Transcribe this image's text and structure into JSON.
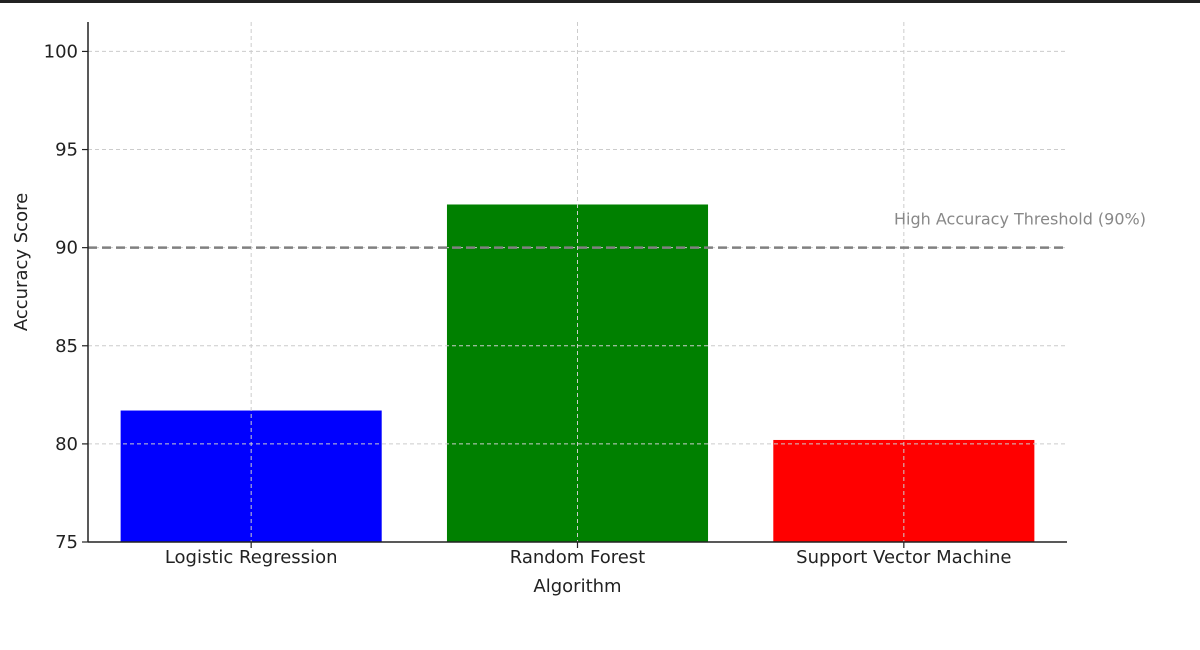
{
  "chart_data": {
    "type": "bar",
    "categories": [
      "Logistic Regression",
      "Random Forest",
      "Support Vector Machine"
    ],
    "values": [
      81.7,
      92.2,
      80.2
    ],
    "bar_colors": [
      "#0000ff",
      "#008000",
      "#ff0000"
    ],
    "title": "",
    "xlabel": "Algorithm",
    "ylabel": "Accuracy Score",
    "ylim": [
      75,
      101.5
    ],
    "yticks": [
      75,
      80,
      85,
      90,
      95,
      100
    ],
    "grid": true,
    "threshold": {
      "value": 90,
      "label": "High Accuracy Threshold (90%)",
      "color": "#808080",
      "style": "dashed"
    }
  }
}
